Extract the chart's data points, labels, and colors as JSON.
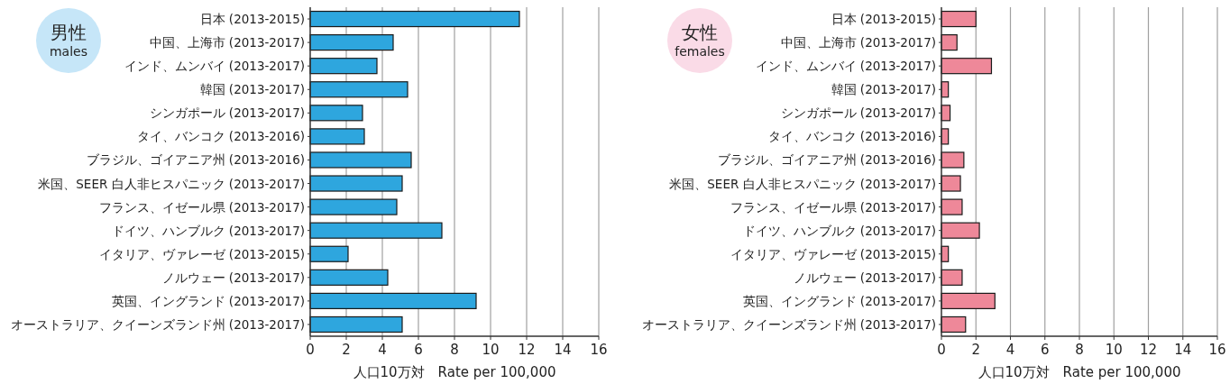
{
  "chart_data": [
    {
      "type": "bar",
      "orientation": "horizontal",
      "title": "男性",
      "subtitle": "males",
      "xlabel": "人口10万対　Rate per 100,000",
      "categories": [
        "日本 (2013-2015)",
        "中国、上海市 (2013-2017)",
        "インド、ムンバイ (2013-2017)",
        "韓国 (2013-2017)",
        "シンガポール (2013-2017)",
        "タイ、バンコク (2013-2016)",
        "ブラジル、ゴイアニア州 (2013-2016)",
        "米国、SEER 白人非ヒスパニック (2013-2017)",
        "フランス、イゼール県 (2013-2017)",
        "ドイツ、ハンブルク (2013-2017)",
        "イタリア、ヴァレーゼ (2013-2015)",
        "ノルウェー (2013-2017)",
        "英国、イングランド (2013-2017)",
        "オーストラリア、クイーンズランド州 (2013-2017)"
      ],
      "values": [
        11.6,
        4.6,
        3.7,
        5.4,
        2.9,
        3.0,
        5.6,
        5.1,
        4.8,
        7.3,
        2.1,
        4.3,
        9.2,
        5.1
      ],
      "color": "#2ea6de",
      "xlim": [
        0,
        16
      ],
      "xticks": [
        0,
        2,
        4,
        6,
        8,
        10,
        12,
        14,
        16
      ],
      "grid": "x"
    },
    {
      "type": "bar",
      "orientation": "horizontal",
      "title": "女性",
      "subtitle": "females",
      "xlabel": "人口10万対　Rate per 100,000",
      "categories": [
        "日本 (2013-2015)",
        "中国、上海市 (2013-2017)",
        "インド、ムンバイ (2013-2017)",
        "韓国 (2013-2017)",
        "シンガポール (2013-2017)",
        "タイ、バンコク (2013-2016)",
        "ブラジル、ゴイアニア州 (2013-2016)",
        "米国、SEER 白人非ヒスパニック (2013-2017)",
        "フランス、イゼール県 (2013-2017)",
        "ドイツ、ハンブルク (2013-2017)",
        "イタリア、ヴァレーゼ (2013-2015)",
        "ノルウェー (2013-2017)",
        "英国、イングランド (2013-2017)",
        "オーストラリア、クイーンズランド州 (2013-2017)"
      ],
      "values": [
        2.0,
        0.9,
        2.9,
        0.4,
        0.5,
        0.4,
        1.3,
        1.1,
        1.2,
        2.2,
        0.4,
        1.2,
        3.1,
        1.4
      ],
      "color": "#ee8899",
      "xlim": [
        0,
        16
      ],
      "xticks": [
        0,
        2,
        4,
        6,
        8,
        10,
        12,
        14,
        16
      ],
      "grid": "x"
    }
  ]
}
